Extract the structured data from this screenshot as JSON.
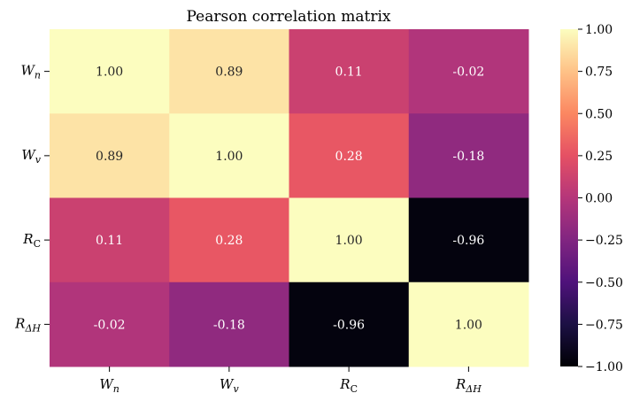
{
  "chart_data": {
    "type": "heatmap",
    "title": "Pearson correlation matrix",
    "row_labels": [
      {
        "base": "W",
        "sub": "n"
      },
      {
        "base": "W",
        "sub": "v"
      },
      {
        "base": "R",
        "sub": "C"
      },
      {
        "base": "R",
        "sub": "ΔH"
      }
    ],
    "col_labels": [
      {
        "base": "W",
        "sub": "n"
      },
      {
        "base": "W",
        "sub": "v"
      },
      {
        "base": "R",
        "sub": "C"
      },
      {
        "base": "R",
        "sub": "ΔH"
      }
    ],
    "matrix": [
      [
        1.0,
        0.89,
        0.11,
        -0.02
      ],
      [
        0.89,
        1.0,
        0.28,
        -0.18
      ],
      [
        0.11,
        0.28,
        1.0,
        -0.96
      ],
      [
        -0.02,
        -0.18,
        -0.96,
        1.0
      ]
    ],
    "cell_labels": [
      [
        "1.00",
        "0.89",
        "0.11",
        "-0.02"
      ],
      [
        "0.89",
        "1.00",
        "0.28",
        "-0.18"
      ],
      [
        "0.11",
        "0.28",
        "1.00",
        "-0.96"
      ],
      [
        "-0.02",
        "-0.18",
        "-0.96",
        "1.00"
      ]
    ],
    "colormap": "magma",
    "vmin": -1.0,
    "vmax": 1.0,
    "colorbar_ticks": [
      1.0,
      0.75,
      0.5,
      0.25,
      0.0,
      -0.25,
      -0.5,
      -0.75,
      -1.0
    ],
    "colorbar_tick_labels": [
      "1.00",
      "0.75",
      "0.50",
      "0.25",
      "0.00",
      "−0.25",
      "−0.50",
      "−0.75",
      "−1.00"
    ]
  }
}
